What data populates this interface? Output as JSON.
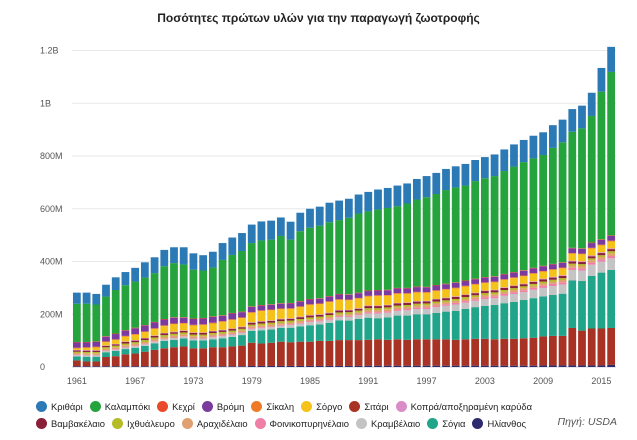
{
  "title": "Ποσότητες πρώτων υλών για την παραγωγή ζωοτροφής",
  "source": "Πηγή: USDA",
  "legend_rows": [
    [
      0,
      1,
      2,
      3,
      4,
      5,
      6,
      7
    ],
    [
      8,
      9,
      10,
      11,
      12,
      13,
      14,
      15
    ]
  ],
  "chart_data": {
    "type": "bar",
    "stacked": true,
    "title": "Ποσότητες πρώτων υλών για την παραγωγή ζωοτροφής",
    "xlabel": "",
    "ylabel": "",
    "ylim": [
      0,
      1240000000
    ],
    "yticks": [
      0,
      200000000,
      400000000,
      600000000,
      800000000,
      1000000000,
      1200000000
    ],
    "ytick_labels": [
      "0",
      "200M",
      "400M",
      "600M",
      "800M",
      "1B",
      "1.2B"
    ],
    "xtick_labels": [
      "1961",
      "1967",
      "1973",
      "1979",
      "1985",
      "1991",
      "1997",
      "2003",
      "2009",
      "2015"
    ],
    "grid": true,
    "legend": "bottom",
    "categories": [
      1961,
      1962,
      1963,
      1964,
      1965,
      1966,
      1967,
      1968,
      1969,
      1970,
      1971,
      1972,
      1973,
      1974,
      1975,
      1976,
      1977,
      1978,
      1979,
      1980,
      1981,
      1982,
      1983,
      1984,
      1985,
      1986,
      1987,
      1988,
      1989,
      1990,
      1991,
      1992,
      1993,
      1994,
      1995,
      1996,
      1997,
      1998,
      1999,
      2000,
      2001,
      2002,
      2003,
      2004,
      2005,
      2006,
      2007,
      2008,
      2009,
      2010,
      2011,
      2012,
      2013,
      2014,
      2015,
      2016
    ],
    "series": [
      {
        "name": "Ηλίανθος",
        "color": "#2e2a6e",
        "values": [
          3,
          3,
          3,
          3,
          3,
          3,
          3,
          3,
          3,
          3,
          3,
          3,
          3,
          3,
          3,
          3,
          3,
          3,
          4,
          4,
          4,
          4,
          4,
          4,
          4,
          4,
          4,
          4,
          4,
          4,
          5,
          5,
          5,
          5,
          5,
          5,
          5,
          5,
          5,
          5,
          5,
          5,
          5,
          5,
          5,
          5,
          5,
          5,
          6,
          6,
          6,
          6,
          6,
          6,
          6,
          8
        ]
      },
      {
        "name": "Σιτάρι",
        "color": "#a83224",
        "values": [
          22,
          18,
          18,
          35,
          38,
          45,
          48,
          55,
          62,
          68,
          72,
          75,
          68,
          68,
          72,
          72,
          75,
          78,
          88,
          85,
          88,
          92,
          90,
          92,
          92,
          95,
          95,
          98,
          98,
          98,
          98,
          100,
          98,
          100,
          98,
          100,
          100,
          100,
          100,
          98,
          100,
          102,
          102,
          100,
          102,
          102,
          104,
          106,
          110,
          112,
          112,
          142,
          132,
          140,
          140,
          140
        ]
      },
      {
        "name": "Σόγια",
        "color": "#20a58a",
        "values": [
          15,
          18,
          18,
          18,
          20,
          20,
          22,
          22,
          25,
          28,
          28,
          30,
          30,
          30,
          30,
          34,
          36,
          40,
          45,
          50,
          50,
          52,
          55,
          58,
          62,
          62,
          68,
          75,
          74,
          80,
          84,
          80,
          85,
          90,
          92,
          95,
          95,
          100,
          105,
          110,
          115,
          120,
          125,
          130,
          135,
          140,
          145,
          150,
          152,
          155,
          160,
          180,
          188,
          200,
          212,
          220
        ]
      },
      {
        "name": "Κραμβέλαιο",
        "color": "#c4c4c4",
        "values": [
          5,
          5,
          5,
          5,
          5,
          6,
          6,
          6,
          6,
          6,
          7,
          7,
          7,
          7,
          8,
          8,
          8,
          8,
          8,
          9,
          9,
          9,
          10,
          10,
          12,
          12,
          12,
          12,
          14,
          14,
          16,
          18,
          18,
          18,
          20,
          20,
          20,
          22,
          22,
          24,
          24,
          24,
          26,
          26,
          28,
          30,
          30,
          32,
          32,
          34,
          35,
          40,
          40,
          42,
          42,
          44
        ]
      },
      {
        "name": "Φοινικοπυρηνέλαιο",
        "color": "#f07fa8",
        "values": [
          2,
          2,
          2,
          2,
          2,
          2,
          2,
          2,
          2,
          2,
          2,
          2,
          2,
          2,
          3,
          3,
          3,
          3,
          3,
          3,
          3,
          3,
          3,
          4,
          4,
          4,
          4,
          4,
          4,
          4,
          5,
          5,
          5,
          5,
          5,
          5,
          6,
          6,
          6,
          6,
          6,
          6,
          7,
          7,
          7,
          7,
          7,
          7,
          8,
          8,
          8,
          8,
          8,
          8,
          8,
          9
        ]
      },
      {
        "name": "Αραχιδέλαιο",
        "color": "#e0a071",
        "values": [
          6,
          6,
          6,
          6,
          7,
          7,
          7,
          7,
          7,
          7,
          7,
          7,
          7,
          7,
          7,
          7,
          7,
          7,
          7,
          7,
          7,
          7,
          7,
          7,
          7,
          7,
          7,
          7,
          7,
          7,
          8,
          8,
          8,
          8,
          8,
          8,
          8,
          8,
          8,
          8,
          8,
          8,
          8,
          8,
          8,
          8,
          8,
          8,
          9,
          9,
          9,
          9,
          9,
          9,
          9,
          10
        ]
      },
      {
        "name": "Ιχθυάλευρο",
        "color": "#b5bc28",
        "values": [
          5,
          5,
          5,
          6,
          6,
          6,
          6,
          7,
          7,
          7,
          7,
          7,
          6,
          6,
          6,
          6,
          6,
          6,
          6,
          7,
          7,
          7,
          7,
          7,
          7,
          7,
          7,
          7,
          7,
          7,
          7,
          7,
          7,
          7,
          7,
          7,
          7,
          7,
          7,
          7,
          7,
          7,
          7,
          7,
          7,
          7,
          7,
          7,
          7,
          7,
          7,
          7,
          7,
          7,
          7,
          8
        ]
      },
      {
        "name": "Βαμβακέλαιο",
        "color": "#8a1f3a",
        "values": [
          5,
          5,
          5,
          5,
          5,
          6,
          6,
          6,
          6,
          6,
          6,
          6,
          6,
          6,
          6,
          6,
          6,
          6,
          7,
          7,
          7,
          7,
          7,
          7,
          7,
          7,
          7,
          7,
          7,
          7,
          8,
          8,
          8,
          8,
          8,
          8,
          8,
          8,
          8,
          8,
          8,
          8,
          8,
          8,
          8,
          8,
          8,
          8,
          8,
          8,
          8,
          8,
          8,
          8,
          8,
          8
        ]
      },
      {
        "name": "Κοπρά/αποξηραμένη καρύδα",
        "color": "#d98cc8",
        "values": [
          2,
          2,
          2,
          2,
          2,
          2,
          2,
          2,
          2,
          2,
          2,
          2,
          2,
          2,
          2,
          2,
          2,
          2,
          2,
          2,
          2,
          2,
          2,
          2,
          2,
          2,
          2,
          2,
          2,
          2,
          2,
          2,
          2,
          2,
          2,
          2,
          2,
          2,
          2,
          2,
          2,
          2,
          2,
          2,
          2,
          2,
          2,
          2,
          3,
          3,
          3,
          3,
          3,
          3,
          3,
          3
        ]
      },
      {
        "name": "Σόργο",
        "color": "#f5c21a",
        "values": [
          5,
          8,
          10,
          12,
          14,
          18,
          20,
          22,
          24,
          26,
          28,
          25,
          26,
          28,
          28,
          30,
          32,
          32,
          35,
          38,
          38,
          36,
          35,
          36,
          38,
          38,
          40,
          38,
          36,
          36,
          34,
          36,
          34,
          34,
          32,
          32,
          30,
          30,
          30,
          30,
          30,
          30,
          28,
          28,
          28,
          28,
          28,
          28,
          26,
          26,
          26,
          26,
          26,
          26,
          26,
          26
        ]
      },
      {
        "name": "Σίκαλη",
        "color": "#ef7a26",
        "values": [
          3,
          3,
          3,
          3,
          3,
          3,
          3,
          3,
          3,
          3,
          3,
          3,
          3,
          3,
          3,
          3,
          3,
          3,
          3,
          3,
          3,
          3,
          3,
          3,
          3,
          3,
          3,
          3,
          3,
          3,
          3,
          3,
          3,
          3,
          3,
          3,
          3,
          3,
          3,
          3,
          3,
          3,
          3,
          3,
          3,
          3,
          3,
          3,
          3,
          3,
          3,
          3,
          3,
          3,
          3,
          3
        ]
      },
      {
        "name": "Βρόμη",
        "color": "#7b3a9e",
        "values": [
          20,
          18,
          18,
          18,
          20,
          20,
          22,
          22,
          22,
          22,
          22,
          20,
          22,
          22,
          22,
          20,
          22,
          20,
          20,
          18,
          18,
          18,
          18,
          18,
          18,
          18,
          18,
          18,
          18,
          18,
          18,
          18,
          18,
          18,
          18,
          18,
          18,
          18,
          18,
          18,
          18,
          18,
          18,
          18,
          18,
          18,
          18,
          18,
          18,
          18,
          18,
          18,
          18,
          18,
          18,
          18
        ]
      },
      {
        "name": "Κεχρί",
        "color": "#e84a2a",
        "values": [
          2,
          2,
          2,
          2,
          2,
          2,
          2,
          2,
          2,
          2,
          2,
          2,
          2,
          2,
          2,
          2,
          2,
          2,
          2,
          2,
          2,
          2,
          2,
          2,
          2,
          2,
          2,
          2,
          2,
          2,
          2,
          2,
          2,
          2,
          2,
          2,
          2,
          2,
          2,
          2,
          2,
          2,
          2,
          2,
          2,
          2,
          2,
          2,
          2,
          2,
          2,
          2,
          2,
          2,
          2,
          2
        ]
      },
      {
        "name": "Καλαμπόκι",
        "color": "#25a33d",
        "values": [
          145,
          145,
          140,
          150,
          165,
          170,
          175,
          180,
          185,
          200,
          205,
          200,
          185,
          180,
          185,
          210,
          220,
          230,
          240,
          245,
          245,
          255,
          240,
          265,
          270,
          275,
          280,
          280,
          290,
          300,
          300,
          305,
          310,
          310,
          320,
          330,
          340,
          345,
          355,
          360,
          360,
          370,
          375,
          380,
          390,
          400,
          410,
          415,
          420,
          440,
          455,
          440,
          455,
          480,
          560,
          620
        ]
      },
      {
        "name": "Κριθάρι",
        "color": "#2b79b5",
        "values": [
          42,
          42,
          40,
          45,
          48,
          50,
          52,
          58,
          60,
          62,
          60,
          65,
          62,
          58,
          60,
          64,
          66,
          68,
          70,
          72,
          72,
          70,
          68,
          70,
          72,
          72,
          74,
          74,
          72,
          72,
          74,
          76,
          76,
          78,
          76,
          78,
          80,
          80,
          80,
          80,
          82,
          80,
          80,
          82,
          82,
          84,
          84,
          86,
          86,
          86,
          86,
          86,
          86,
          88,
          90,
          95
        ]
      }
    ],
    "value_unit": "M"
  },
  "legend_order": [
    "Κριθάρι",
    "Καλαμπόκι",
    "Κεχρί",
    "Βρόμη",
    "Σίκαλη",
    "Σόργο",
    "Σιτάρι",
    "Κοπρά/αποξηραμένη καρύδα",
    "Βαμβακέλαιο",
    "Ιχθυάλευρο",
    "Αραχιδέλαιο",
    "Φοινικοπυρηνέλαιο",
    "Κραμβέλαιο",
    "Σόγια",
    "Ηλίανθος"
  ]
}
